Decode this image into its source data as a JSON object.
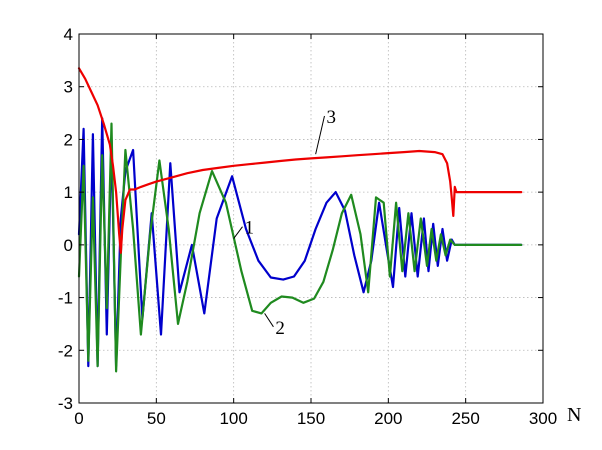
{
  "chart_data": {
    "type": "line",
    "title": "",
    "xlabel": "N",
    "ylabel": "",
    "xlim": [
      0,
      300
    ],
    "ylim": [
      -3,
      4
    ],
    "xticks": [
      0,
      50,
      100,
      150,
      200,
      250,
      300
    ],
    "yticks": [
      -3,
      -2,
      -1,
      0,
      1,
      2,
      3,
      4
    ],
    "xtick_labels": [
      "0",
      "50",
      "100",
      "150",
      "200",
      "250",
      "300"
    ],
    "ytick_labels": [
      "-3",
      "-2",
      "-1",
      "0",
      "1",
      "2",
      "3",
      "4"
    ],
    "grid": true,
    "series": [
      {
        "name": "",
        "label": "1",
        "color": "#0000cc",
        "x": [
          0,
          3,
          6,
          9,
          12,
          15,
          18,
          21,
          24,
          27,
          30,
          35,
          41,
          47,
          53,
          59,
          65,
          73,
          81,
          89,
          99,
          108,
          116,
          124,
          132,
          139,
          146,
          153,
          160,
          166,
          172,
          178,
          184,
          189,
          194,
          199,
          203,
          207,
          211,
          215,
          219,
          223,
          226,
          229,
          232,
          235,
          238,
          241,
          243,
          245,
          286
        ],
        "y": [
          0.2,
          2.2,
          -2.3,
          2.1,
          -2.3,
          2.4,
          -1.7,
          2.0,
          -2.3,
          0.5,
          1.4,
          1.8,
          -1.4,
          0.6,
          -1.7,
          1.55,
          -0.9,
          0.0,
          -1.3,
          0.5,
          1.3,
          0.3,
          -0.3,
          -0.62,
          -0.66,
          -0.6,
          -0.3,
          0.3,
          0.8,
          1.0,
          0.65,
          -0.2,
          -0.9,
          -0.3,
          0.8,
          -0.1,
          -0.8,
          0.7,
          -0.6,
          0.6,
          -0.6,
          0.5,
          -0.5,
          0.4,
          -0.4,
          0.3,
          -0.3,
          0.1,
          0.0,
          0.0,
          0.0
        ]
      },
      {
        "name": "",
        "label": "2",
        "color": "#1f8a1f",
        "x": [
          0,
          3,
          6,
          9,
          12,
          15,
          18,
          21,
          24,
          27,
          30,
          35,
          40,
          46,
          52,
          58,
          64,
          70,
          78,
          86,
          95,
          105,
          112,
          118,
          124,
          131,
          138,
          145,
          152,
          158,
          164,
          170,
          176,
          182,
          187,
          192,
          197,
          201,
          205,
          209,
          213,
          217,
          221,
          225,
          228,
          231,
          234,
          237,
          240,
          243,
          286
        ],
        "y": [
          -0.6,
          1.5,
          -2.2,
          0.9,
          -2.3,
          1.7,
          -1.2,
          2.3,
          -2.4,
          -0.2,
          1.8,
          0.3,
          -1.7,
          0.2,
          1.6,
          0.3,
          -1.5,
          -0.7,
          0.6,
          1.4,
          0.8,
          -0.5,
          -1.25,
          -1.3,
          -1.1,
          -0.98,
          -1.0,
          -1.1,
          -1.02,
          -0.7,
          -0.1,
          0.6,
          0.95,
          0.2,
          -0.9,
          0.9,
          0.8,
          -0.6,
          0.8,
          -0.5,
          0.6,
          -0.5,
          0.5,
          -0.4,
          0.3,
          -0.3,
          0.2,
          -0.2,
          0.1,
          0.0,
          0.0
        ]
      },
      {
        "name": "",
        "label": "3",
        "color": "#ee0000",
        "x": [
          0,
          4,
          8,
          12,
          16,
          20,
          22,
          24,
          26,
          27,
          28,
          30,
          33,
          36,
          40,
          45,
          50,
          60,
          70,
          80,
          90,
          100,
          110,
          120,
          130,
          140,
          150,
          160,
          170,
          180,
          190,
          200,
          210,
          220,
          230,
          235,
          238,
          240,
          241,
          242,
          243,
          244,
          286
        ],
        "y": [
          3.35,
          3.15,
          2.9,
          2.65,
          2.3,
          1.9,
          1.5,
          1.0,
          0.2,
          -0.15,
          0.3,
          0.85,
          1.05,
          1.05,
          1.1,
          1.15,
          1.2,
          1.28,
          1.36,
          1.42,
          1.46,
          1.5,
          1.53,
          1.56,
          1.59,
          1.62,
          1.64,
          1.66,
          1.68,
          1.7,
          1.72,
          1.74,
          1.76,
          1.78,
          1.76,
          1.72,
          1.55,
          1.2,
          0.9,
          0.55,
          1.1,
          1.0,
          1.0
        ]
      }
    ],
    "annotations": [
      {
        "text": "1",
        "x": 107,
        "y": 0.25,
        "point_x": 100,
        "point_y": 0.12
      },
      {
        "text": "2",
        "x": 127,
        "y": -1.65,
        "point_x": 120,
        "point_y": -1.3
      },
      {
        "text": "3",
        "x": 160,
        "y": 2.35,
        "point_x": 153,
        "point_y": 1.72
      }
    ]
  }
}
